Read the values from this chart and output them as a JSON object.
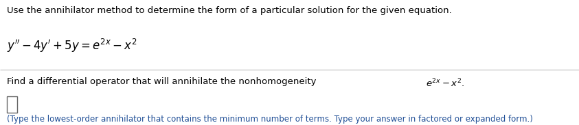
{
  "bg_color": "#ffffff",
  "text_color": "#000000",
  "blue_color": "#1f4e96",
  "line1": "Use the annihilator method to determine the form of a particular solution for the given equation.",
  "footer": "(Type the lowest-order annihilator that contains the minimum number of terms. Type your answer in factored or expanded form.)",
  "figsize": [
    8.43,
    1.83
  ],
  "dpi": 100
}
